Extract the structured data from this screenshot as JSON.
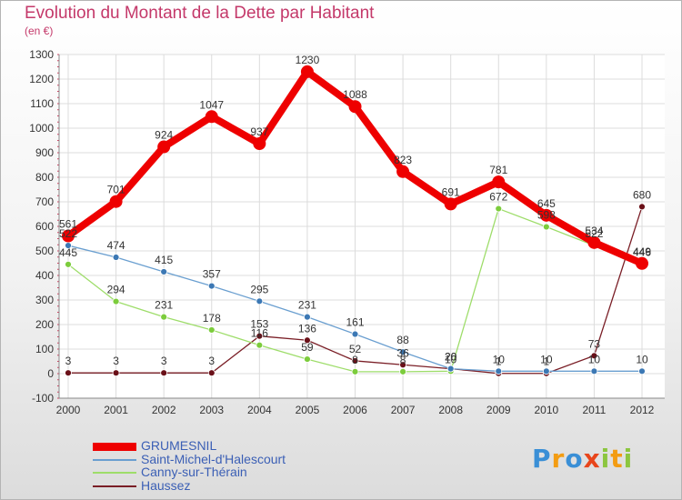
{
  "title": "Evolution du Montant de la Dette par Habitant",
  "subtitle": "(en €)",
  "logo": {
    "letters": [
      {
        "ch": "P",
        "color": "#3a8fd6"
      },
      {
        "ch": "r",
        "color": "#f39c12"
      },
      {
        "ch": "o",
        "color": "#3a8fd6"
      },
      {
        "ch": "x",
        "color": "#e8451b"
      },
      {
        "ch": "i",
        "color": "#8cc63f"
      },
      {
        "ch": "t",
        "color": "#f39c12"
      },
      {
        "ch": "i",
        "color": "#8cc63f"
      }
    ]
  },
  "chart_data": {
    "type": "line",
    "x": [
      "2000",
      "2001",
      "2002",
      "2003",
      "2004",
      "2005",
      "2006",
      "2007",
      "2008",
      "2009",
      "2010",
      "2011",
      "2012"
    ],
    "ylim": [
      -100,
      1300
    ],
    "yticks": [
      "-100",
      "0",
      "100",
      "200",
      "300",
      "400",
      "500",
      "600",
      "700",
      "800",
      "900",
      "1000",
      "1100",
      "1200",
      "1300"
    ],
    "grid": true,
    "legend_position": "bottom-left",
    "series": [
      {
        "name": "GRUMESNIL",
        "color": "#ee0000",
        "marker": "#ee0000",
        "weight": "heavy",
        "values": [
          561,
          701,
          924,
          1047,
          937,
          1230,
          1088,
          823,
          691,
          781,
          645,
          534,
          449
        ],
        "labels": [
          "561",
          "701",
          "924",
          "1047",
          "937",
          "1230",
          "1088",
          "823",
          "691",
          "781",
          "645",
          "534",
          "449"
        ]
      },
      {
        "name": "Saint-Michel-d'Halescourt",
        "color": "#6a9fd0",
        "marker": "#3c78b4",
        "weight": "thin",
        "values": [
          522,
          474,
          415,
          357,
          295,
          231,
          161,
          88,
          20,
          10,
          10,
          10,
          10
        ],
        "labels": [
          "522",
          "474",
          "415",
          "357",
          "295",
          "231",
          "161",
          "88",
          "20",
          "10",
          "10",
          "10",
          "10"
        ]
      },
      {
        "name": "Canny-sur-Thérain",
        "color": "#9edd6a",
        "marker": "#7ccc3c",
        "weight": "thin",
        "values": [
          445,
          294,
          231,
          178,
          116,
          59,
          8,
          8,
          10,
          672,
          598,
          522,
          446
        ],
        "labels": [
          "445",
          "294",
          "231",
          "178",
          "116",
          "59",
          "8",
          "8",
          "10",
          "672",
          "598",
          "522",
          "446"
        ]
      },
      {
        "name": "Haussez",
        "color": "#7a1e26",
        "marker": "#6a1018",
        "weight": "thin",
        "values": [
          3,
          3,
          3,
          3,
          153,
          136,
          52,
          36,
          20,
          1,
          1,
          73,
          680
        ],
        "labels": [
          "3",
          "3",
          "3",
          "3",
          "153",
          "136",
          "52",
          "36",
          "20",
          "1",
          "1",
          "73",
          "680"
        ]
      }
    ]
  }
}
